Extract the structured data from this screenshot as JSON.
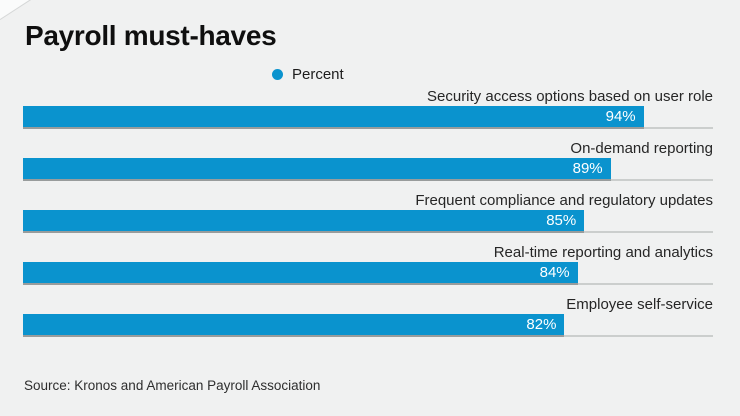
{
  "title": "Payroll must-haves",
  "legend": {
    "label": "Percent"
  },
  "source": "Source: Kronos and American Payroll Association",
  "colors": {
    "bar": "#0a93ce",
    "background": "#f0f1f1",
    "title_text": "#0f0f0f",
    "label_text": "#262626",
    "value_text": "#ffffff",
    "rule": "#cbcecd"
  },
  "chart_data": {
    "type": "bar",
    "orientation": "horizontal",
    "title": "Payroll must-haves",
    "legend_entries": [
      "Percent"
    ],
    "legend_position": "top",
    "grid": false,
    "xlabel": "",
    "ylabel": "",
    "xlim": [
      0,
      104.5
    ],
    "categories": [
      "Security access options based on user role",
      "On-demand reporting",
      "Frequent compliance and regulatory updates",
      "Real-time reporting and analytics",
      "Employee self-service"
    ],
    "values": [
      94,
      89,
      85,
      84,
      82
    ],
    "value_labels": [
      "94%",
      "89%",
      "85%",
      "84%",
      "82%"
    ],
    "source": "Source: Kronos and American Payroll Association"
  }
}
